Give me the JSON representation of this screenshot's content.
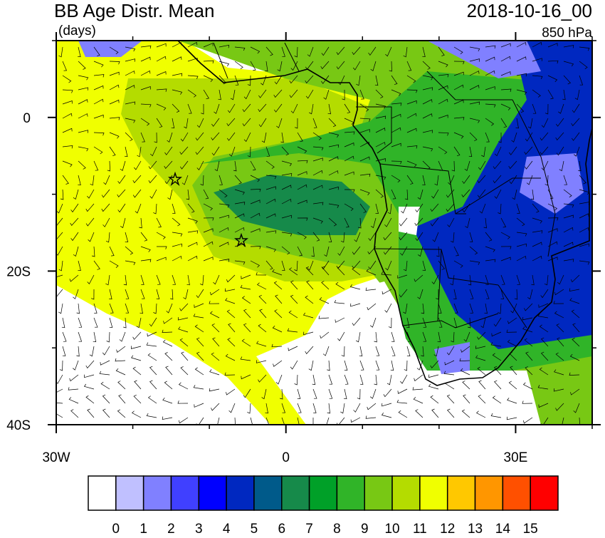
{
  "title": "BB Age Distr. Mean",
  "units": "(days)",
  "time": "2018-10-16_00",
  "level": "850 hPa",
  "map": {
    "xlim": [
      -30,
      40
    ],
    "ylim": [
      -40,
      10
    ],
    "xticks": [
      {
        "value": -30,
        "label": "30W"
      },
      0,
      {
        "value": 30,
        "label": "30E"
      }
    ],
    "yticks": [
      0,
      {
        "value": -20,
        "label": "20S"
      },
      {
        "value": -40,
        "label": "40S"
      }
    ]
  },
  "colorbar": {
    "colors": [
      "#ffffff",
      "#c0c0ff",
      "#8080ff",
      "#4040ff",
      "#0000ff",
      "#0028c0",
      "#005a8a",
      "#168a4a",
      "#00a028",
      "#30b428",
      "#78c814",
      "#b4dc00",
      "#f0ff00",
      "#ffc800",
      "#ff9600",
      "#ff5000",
      "#ff0000"
    ],
    "labels": [
      0,
      1,
      2,
      3,
      4,
      5,
      6,
      7,
      8,
      9,
      10,
      11,
      12,
      13,
      14,
      15
    ]
  }
}
